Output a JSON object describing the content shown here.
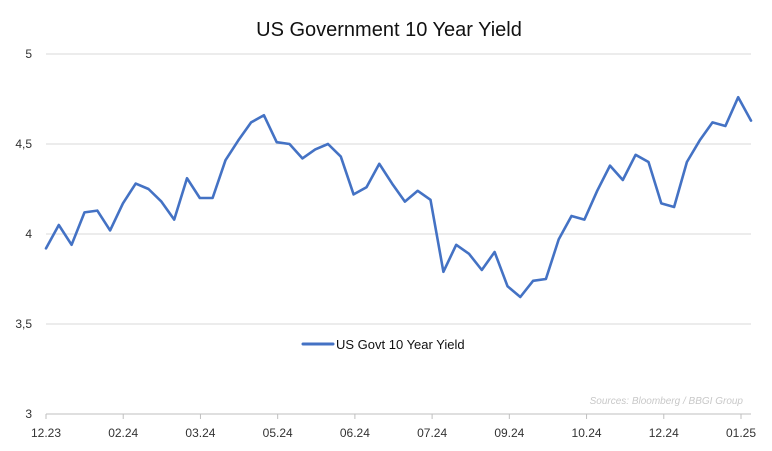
{
  "chart_data": {
    "type": "line",
    "title": "US Government 10 Year Yield",
    "xlabel": "",
    "ylabel": "",
    "x_tick_labels": [
      "12.23",
      "02.24",
      "03.24",
      "05.24",
      "06.24",
      "07.24",
      "09.24",
      "10.24",
      "12.24",
      "01.25"
    ],
    "y_tick_labels": [
      "3",
      "3,5",
      "4",
      "4,5",
      "5"
    ],
    "ylim": [
      3,
      5
    ],
    "grid": true,
    "legend_position": "center",
    "source": "Sources: Bloomberg / BBGI Group",
    "series": [
      {
        "name": "US  Govt 10 Year Yield",
        "color": "#4472c4",
        "values": [
          3.92,
          4.05,
          3.94,
          4.12,
          4.13,
          4.02,
          4.17,
          4.28,
          4.25,
          4.18,
          4.08,
          4.31,
          4.2,
          4.2,
          4.41,
          4.52,
          4.62,
          4.66,
          4.51,
          4.5,
          4.42,
          4.47,
          4.5,
          4.43,
          4.22,
          4.26,
          4.39,
          4.28,
          4.18,
          4.24,
          4.19,
          3.79,
          3.94,
          3.89,
          3.8,
          3.9,
          3.71,
          3.65,
          3.74,
          3.75,
          3.97,
          4.1,
          4.08,
          4.24,
          4.38,
          4.3,
          4.44,
          4.4,
          4.17,
          4.15,
          4.4,
          4.52,
          4.62,
          4.6,
          4.76,
          4.63
        ]
      }
    ]
  }
}
